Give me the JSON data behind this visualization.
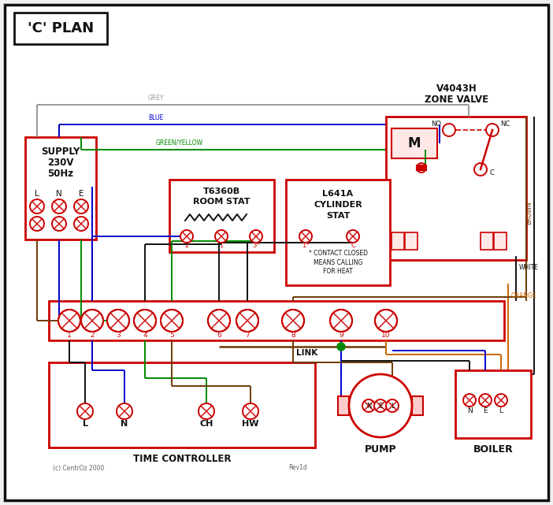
{
  "title": "'C' PLAN",
  "bg": "#f0f0f0",
  "RED": "#cc0000",
  "BLUE": "#0000cc",
  "GREEN": "#008800",
  "BROWN": "#6b3a00",
  "GREY": "#999999",
  "ORANGE": "#cc6600",
  "BLACK": "#111111",
  "supply_text_lines": [
    "SUPPLY",
    "230V",
    "50Hz"
  ],
  "zone_valve_title": "V4043H\nZONE VALVE",
  "room_stat_title1": "T6360B",
  "room_stat_title2": "ROOM STAT",
  "cyl_stat_title1": "L641A",
  "cyl_stat_title2": "CYLINDER",
  "cyl_stat_title3": "STAT",
  "time_ctrl_title": "TIME CONTROLLER",
  "pump_title": "PUMP",
  "boiler_title": "BOILER",
  "terminal_labels": [
    "1",
    "2",
    "3",
    "4",
    "5",
    "6",
    "7",
    "8",
    "9",
    "10"
  ],
  "tc_terminals": [
    "L",
    "N",
    "CH",
    "HW"
  ],
  "pump_terminals": [
    "N",
    "E",
    "L"
  ],
  "boiler_terminals": [
    "N",
    "E",
    "L"
  ],
  "link_label": "LINK",
  "grey_label": "GREY",
  "blue_label": "BLUE",
  "green_yellow_label": "GREEN/YELLOW",
  "brown_label": "BROWN",
  "white_label": "WHITE",
  "orange_label": "ORANGE",
  "contact_note": "* CONTACT CLOSED\nMEANS CALLING\nFOR HEAT",
  "copyright": "(c) CentrOz 2000",
  "rev": "Rev1d"
}
